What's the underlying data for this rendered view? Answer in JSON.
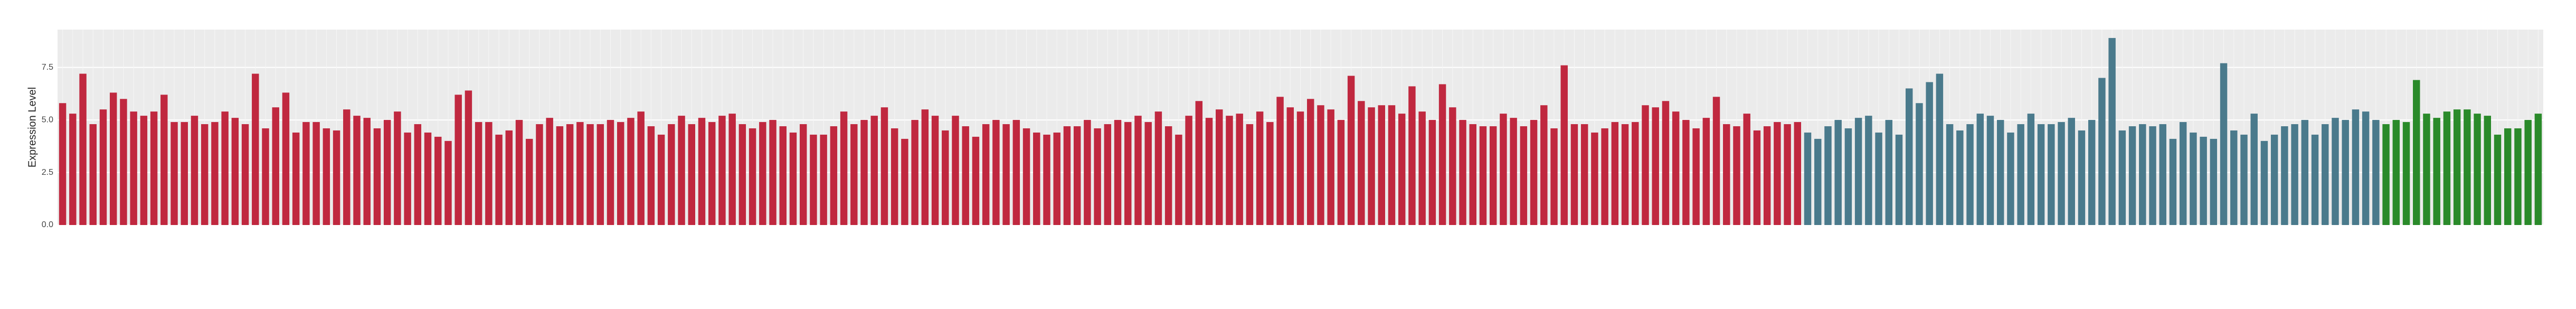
{
  "chart_data": {
    "type": "bar",
    "y_label": "Expression Level",
    "ylim": [
      0,
      9.3
    ],
    "yticks": [
      {
        "value": 0,
        "label": "0.0"
      },
      {
        "value": 2.5,
        "label": "2.5"
      },
      {
        "value": 5,
        "label": "5.0"
      },
      {
        "value": 7.5,
        "label": "7.5"
      }
    ],
    "grid": true,
    "series": [
      {
        "color": "#c0283f",
        "values": [
          5.8,
          5.3,
          7.2,
          4.8,
          5.5,
          6.3,
          6.0,
          5.4,
          5.2,
          5.4,
          6.2,
          4.9,
          4.9,
          5.2,
          4.8,
          4.9,
          5.4,
          5.1,
          4.8,
          7.2,
          4.6,
          5.6,
          6.3,
          4.4,
          4.9,
          4.9,
          4.6,
          4.5,
          5.5,
          5.2,
          5.1,
          4.6,
          5.0,
          5.4,
          4.4,
          4.8,
          4.4,
          4.2,
          4.0,
          6.2,
          6.4,
          4.9,
          4.9,
          4.3,
          4.5,
          5.0,
          4.1,
          4.8,
          5.1,
          4.7,
          4.8,
          4.9,
          4.8,
          4.8,
          5.0,
          4.9,
          5.1,
          5.4,
          4.7,
          4.3,
          4.8,
          5.2,
          4.8,
          5.1,
          4.9,
          5.2,
          5.3,
          4.8,
          4.6,
          4.9,
          5.0,
          4.7,
          4.4,
          4.8,
          4.3,
          4.3,
          4.7,
          5.4,
          4.8,
          5.0,
          5.2,
          5.6,
          4.6,
          4.1,
          5.0,
          5.5,
          5.2,
          4.5,
          5.2,
          4.7,
          4.2,
          4.8,
          5.0,
          4.8,
          5.0,
          4.6,
          4.4,
          4.3,
          4.4,
          4.7,
          4.7,
          5.0,
          4.6,
          4.8,
          5.0,
          4.9,
          5.2,
          4.9,
          5.4,
          4.7,
          4.3,
          5.2,
          5.9,
          5.1,
          5.5,
          5.2,
          5.3,
          4.8,
          5.4,
          4.9,
          6.1,
          5.6,
          5.4,
          6.0,
          5.7,
          5.5,
          5.0,
          7.1,
          5.9,
          5.6,
          5.7,
          5.7,
          5.3,
          6.6,
          5.4,
          5.0,
          6.7,
          5.6,
          5.0,
          4.8,
          4.7,
          4.7,
          5.3,
          5.1,
          4.7,
          5.0,
          5.7,
          4.6,
          7.6,
          4.8,
          4.8,
          4.4,
          4.6,
          4.9,
          4.8,
          4.9,
          5.7,
          5.6,
          5.9,
          5.4,
          5.0,
          4.6,
          5.1,
          6.1,
          4.8,
          4.7,
          5.3,
          4.5,
          4.7,
          4.9,
          4.8,
          4.9
        ]
      },
      {
        "color": "#4a7a8c",
        "values": [
          4.4,
          4.1,
          4.7,
          5.0,
          4.6,
          5.1,
          5.2,
          4.4,
          5.0,
          4.3,
          6.5,
          5.8,
          6.8,
          7.2,
          4.8,
          4.5,
          4.8,
          5.3,
          5.2,
          5.0,
          4.4,
          4.8,
          5.3,
          4.8,
          4.8,
          4.9,
          5.1,
          4.5,
          5.0,
          7.0,
          8.9,
          4.5,
          4.7,
          4.8,
          4.7,
          4.8,
          4.1,
          4.9,
          4.4,
          4.2,
          4.1,
          7.7,
          4.5,
          4.3,
          5.3,
          4.0,
          4.3,
          4.7,
          4.8,
          5.0,
          4.3,
          4.8,
          5.1,
          5.0,
          5.5,
          5.4,
          5.0
        ]
      },
      {
        "color": "#2a8a2a",
        "values": [
          4.8,
          5.0,
          4.9,
          6.9,
          5.3,
          5.1,
          5.4,
          5.5,
          5.5,
          5.3,
          5.2,
          4.3,
          4.6,
          4.6,
          5.0,
          5.3
        ]
      }
    ]
  }
}
